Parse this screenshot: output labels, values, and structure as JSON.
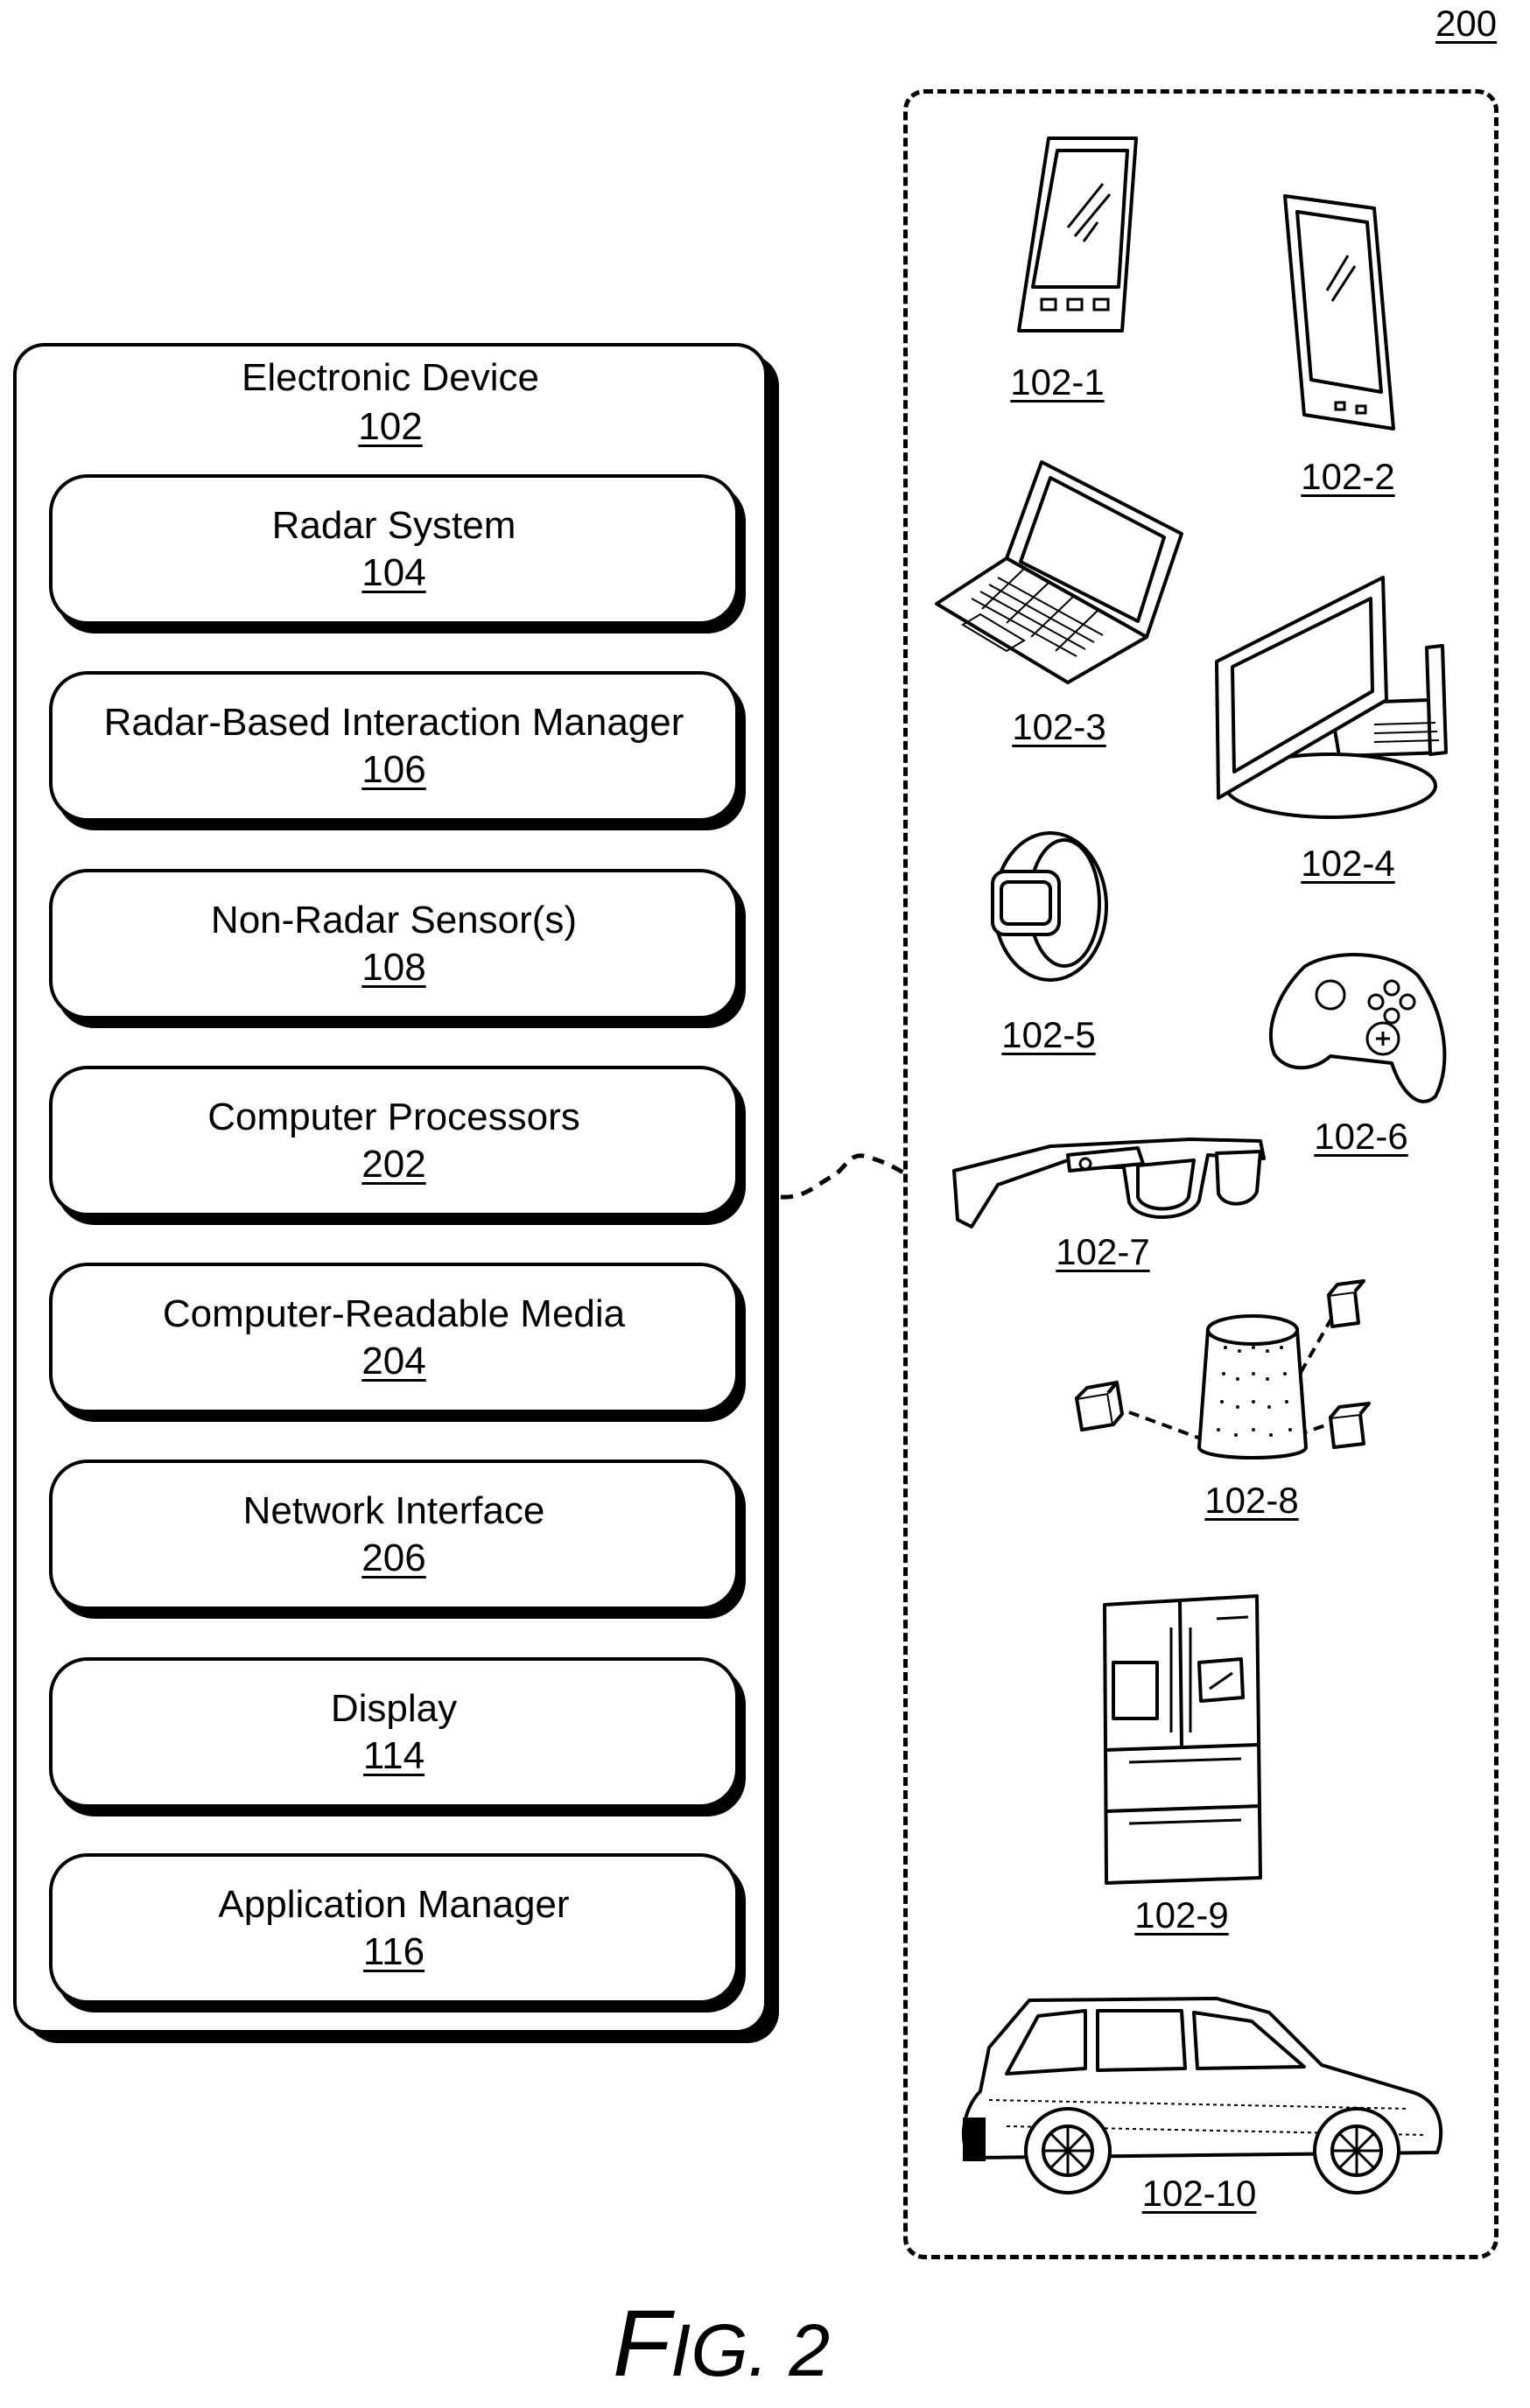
{
  "figure": {
    "label": "FIG. 2",
    "label_initial": "F",
    "label_rest": "IG. 2",
    "ref": "200"
  },
  "electronic_device": {
    "title": "Electronic Device",
    "ref": "102",
    "components": [
      {
        "name": "Radar System",
        "ref": "104"
      },
      {
        "name": "Radar-Based Interaction Manager",
        "ref": "106"
      },
      {
        "name": "Non-Radar Sensor(s)",
        "ref": "108"
      },
      {
        "name": "Computer Processors",
        "ref": "202"
      },
      {
        "name": "Computer-Readable Media",
        "ref": "204"
      },
      {
        "name": "Network Interface",
        "ref": "206"
      },
      {
        "name": "Display",
        "ref": "114"
      },
      {
        "name": "Application Manager",
        "ref": "116"
      }
    ]
  },
  "example_devices": [
    {
      "ref": "102-1",
      "icon": "smartphone-icon"
    },
    {
      "ref": "102-2",
      "icon": "tablet-icon"
    },
    {
      "ref": "102-3",
      "icon": "laptop-icon"
    },
    {
      "ref": "102-4",
      "icon": "desktop-monitor-icon"
    },
    {
      "ref": "102-5",
      "icon": "smartwatch-icon"
    },
    {
      "ref": "102-6",
      "icon": "game-controller-icon"
    },
    {
      "ref": "102-7",
      "icon": "smart-glasses-icon"
    },
    {
      "ref": "102-8",
      "icon": "smart-speaker-icon"
    },
    {
      "ref": "102-9",
      "icon": "refrigerator-icon"
    },
    {
      "ref": "102-10",
      "icon": "suv-car-icon"
    }
  ]
}
